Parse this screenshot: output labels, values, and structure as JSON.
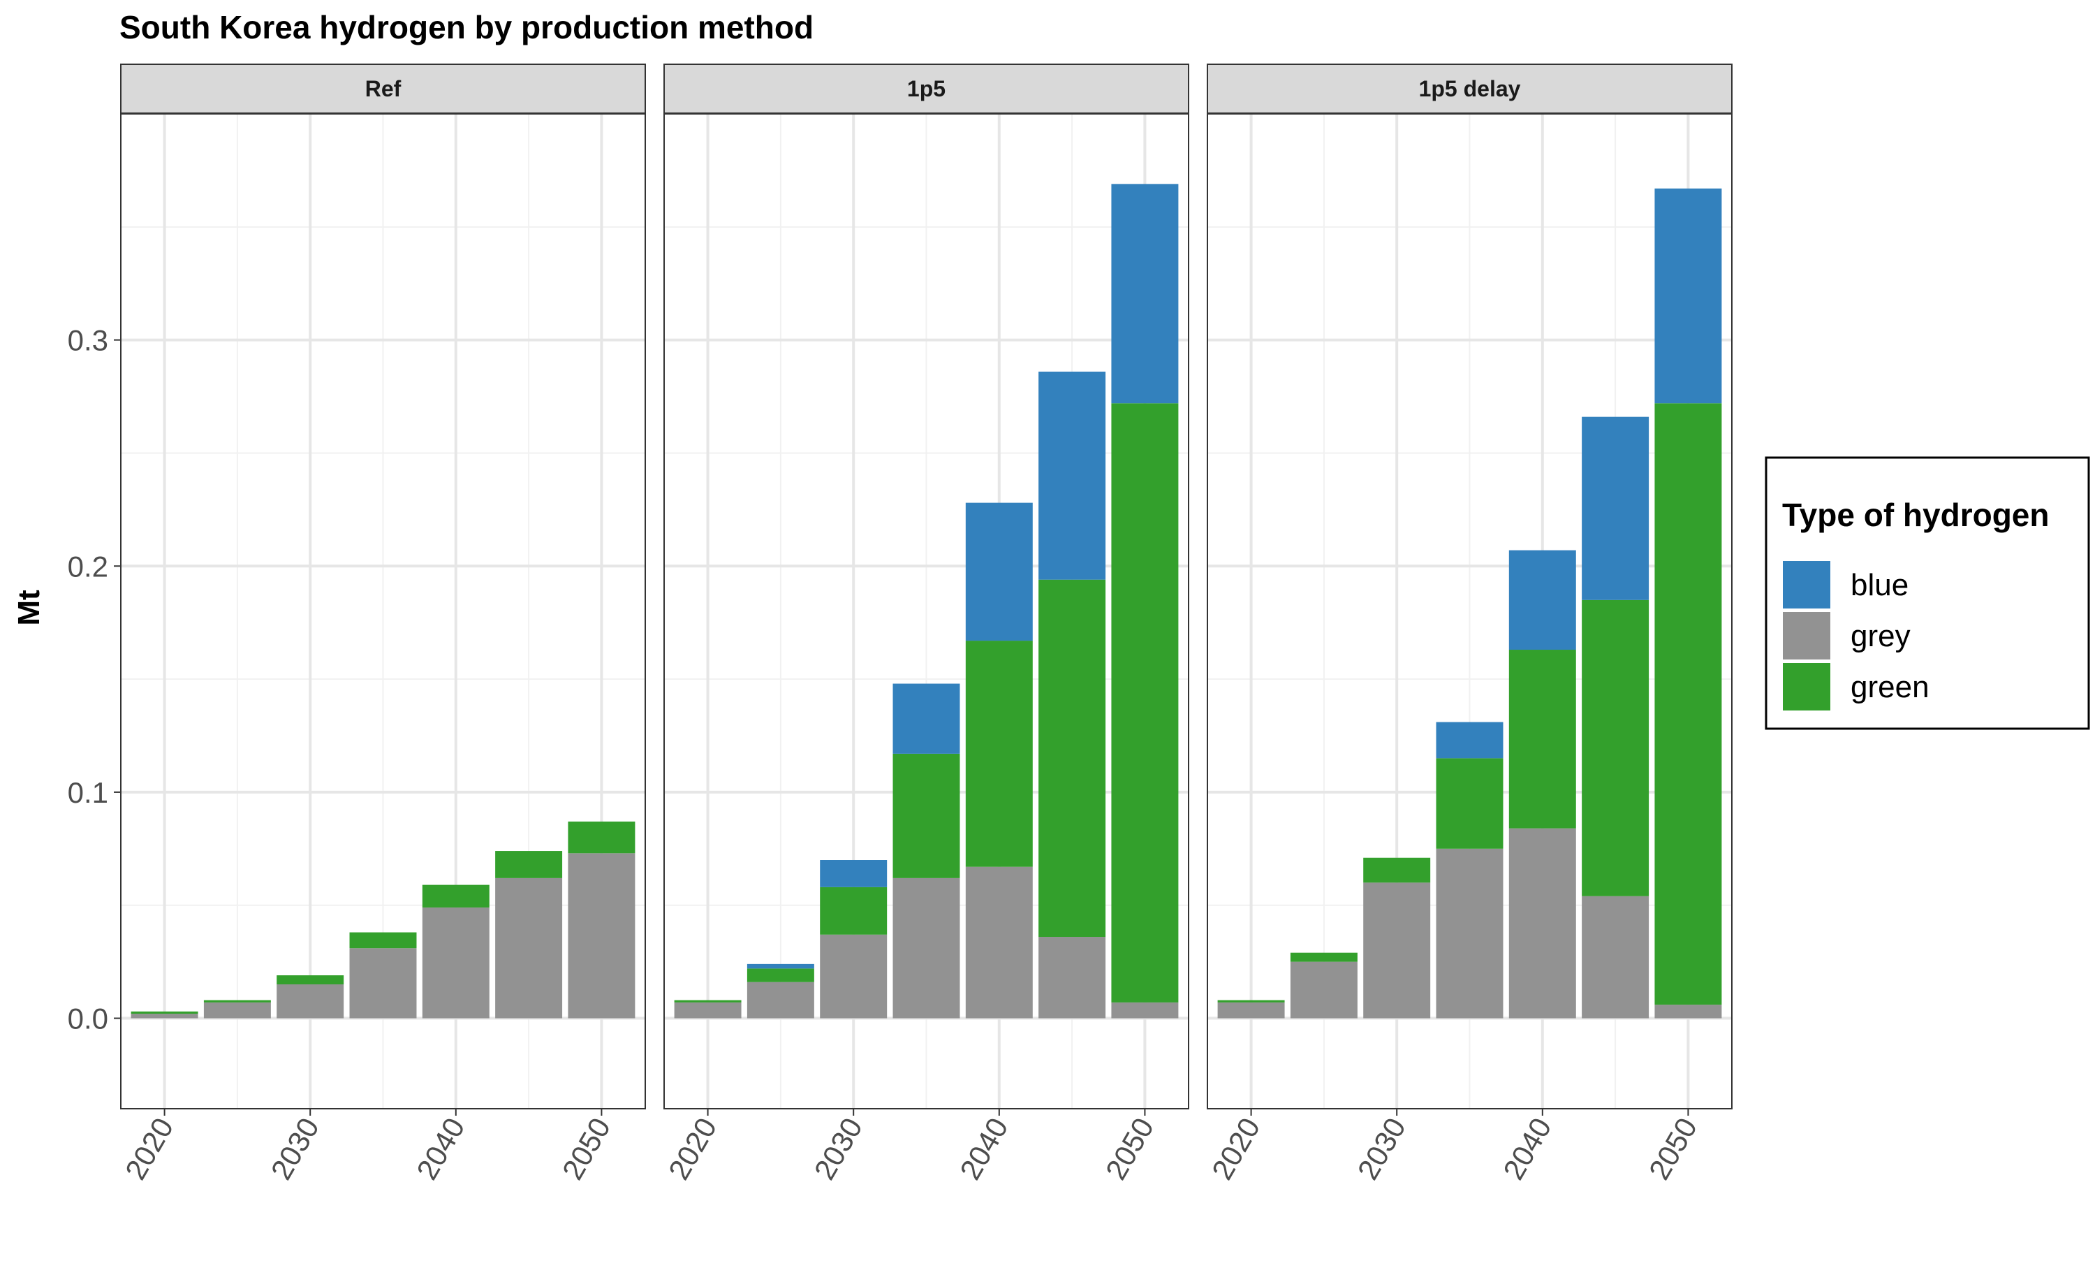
{
  "chart_data": {
    "type": "bar",
    "stacked": true,
    "title": "South Korea hydrogen by production method",
    "xlabel": "",
    "ylabel": "Mt",
    "ylim": [
      -0.04,
      0.4
    ],
    "y_ticks": [
      0.0,
      0.1,
      0.2,
      0.3
    ],
    "y_tick_labels": [
      "0.0",
      "0.1",
      "0.2",
      "0.3"
    ],
    "xlim": [
      2017,
      2053
    ],
    "x_ticks": [
      2020,
      2030,
      2040,
      2050
    ],
    "x_tick_labels": [
      "2020",
      "2030",
      "2040",
      "2050"
    ],
    "categories": [
      2020,
      2025,
      2030,
      2035,
      2040,
      2045,
      2050
    ],
    "grid": true,
    "legend": {
      "title": "Type of hydrogen",
      "placement": "right",
      "entries": [
        {
          "name": "blue",
          "color": "#3381bd"
        },
        {
          "name": "grey",
          "color": "#929292"
        },
        {
          "name": "green",
          "color": "#33a02c"
        }
      ]
    },
    "panels": [
      {
        "title": "Ref",
        "series": [
          {
            "name": "grey",
            "values": [
              0.002,
              0.007,
              0.015,
              0.031,
              0.049,
              0.062,
              0.073
            ]
          },
          {
            "name": "green",
            "values": [
              0.001,
              0.001,
              0.004,
              0.007,
              0.01,
              0.012,
              0.014
            ]
          },
          {
            "name": "blue",
            "values": [
              0,
              0,
              0,
              0,
              0,
              0,
              0
            ]
          }
        ]
      },
      {
        "title": "1p5",
        "series": [
          {
            "name": "grey",
            "values": [
              0.007,
              0.016,
              0.037,
              0.062,
              0.067,
              0.036,
              0.007
            ]
          },
          {
            "name": "green",
            "values": [
              0.001,
              0.006,
              0.021,
              0.055,
              0.1,
              0.158,
              0.265
            ]
          },
          {
            "name": "blue",
            "values": [
              0,
              0.002,
              0.012,
              0.031,
              0.061,
              0.092,
              0.097
            ]
          }
        ]
      },
      {
        "title": "1p5 delay",
        "series": [
          {
            "name": "grey",
            "values": [
              0.007,
              0.025,
              0.06,
              0.075,
              0.084,
              0.054,
              0.006
            ]
          },
          {
            "name": "green",
            "values": [
              0.001,
              0.004,
              0.011,
              0.04,
              0.079,
              0.131,
              0.266
            ]
          },
          {
            "name": "blue",
            "values": [
              0,
              0,
              0,
              0.016,
              0.044,
              0.081,
              0.095
            ]
          }
        ]
      }
    ]
  }
}
